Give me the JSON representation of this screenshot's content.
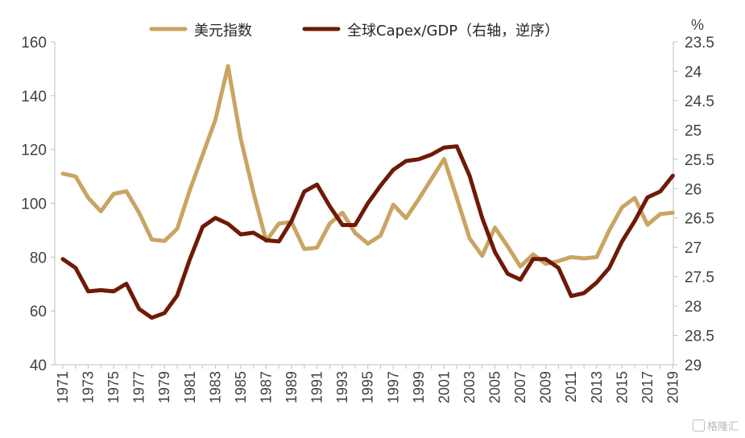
{
  "chart_data": {
    "type": "line",
    "title": "",
    "legend_position": "top",
    "x": [
      1971,
      1972,
      1973,
      1974,
      1975,
      1976,
      1977,
      1978,
      1979,
      1980,
      1981,
      1982,
      1983,
      1984,
      1985,
      1986,
      1987,
      1988,
      1989,
      1990,
      1991,
      1992,
      1993,
      1994,
      1995,
      1996,
      1997,
      1998,
      1999,
      2000,
      2001,
      2002,
      2003,
      2004,
      2005,
      2006,
      2007,
      2008,
      2009,
      2010,
      2011,
      2012,
      2013,
      2014,
      2015,
      2016,
      2017,
      2018,
      2019
    ],
    "x_tick_labels": [
      "1971",
      "1973",
      "1975",
      "1977",
      "1979",
      "1981",
      "1983",
      "1985",
      "1987",
      "1989",
      "1991",
      "1993",
      "1995",
      "1997",
      "1999",
      "2001",
      "2003",
      "2005",
      "2007",
      "2009",
      "2011",
      "2013",
      "2015",
      "2017",
      "2019"
    ],
    "left_axis": {
      "ylim": [
        40,
        160
      ],
      "ticks": [
        "40",
        "60",
        "80",
        "100",
        "120",
        "140",
        "160"
      ]
    },
    "right_axis": {
      "unit_label": "%",
      "ylim": [
        23.5,
        29
      ],
      "inverted": true,
      "ticks": [
        "23.5",
        "24",
        "24.5",
        "25",
        "25.5",
        "26",
        "26.5",
        "27",
        "27.5",
        "28",
        "28.5",
        "29"
      ]
    },
    "series": [
      {
        "name": "美元指数",
        "axis": "left",
        "color": "#c9a463",
        "values": [
          111,
          110,
          102,
          97,
          103.5,
          104.5,
          96.5,
          86.5,
          86,
          90.5,
          105,
          118,
          131,
          151,
          124,
          104,
          86,
          92.5,
          93,
          83,
          83.5,
          92.5,
          96.5,
          89,
          85,
          88,
          99.5,
          94.5,
          101.5,
          109,
          116.5,
          102,
          87,
          80.5,
          91,
          84,
          76.5,
          81,
          77.5,
          78.5,
          80,
          79.5,
          80,
          90,
          98.5,
          102,
          92,
          96,
          96.5
        ]
      },
      {
        "name": "全球Capex/GDP（右轴，逆序）",
        "axis": "right",
        "color": "#6e1a05",
        "values": [
          27.2,
          27.35,
          27.75,
          27.73,
          27.75,
          27.62,
          28.05,
          28.2,
          28.12,
          27.82,
          27.2,
          26.65,
          26.5,
          26.6,
          26.78,
          26.75,
          26.88,
          26.9,
          26.55,
          26.05,
          25.93,
          26.3,
          26.62,
          26.62,
          26.25,
          25.95,
          25.68,
          25.53,
          25.5,
          25.42,
          25.3,
          25.28,
          25.78,
          26.5,
          27.08,
          27.45,
          27.55,
          27.2,
          27.2,
          27.35,
          27.83,
          27.78,
          27.6,
          27.35,
          26.9,
          26.55,
          26.15,
          26.05,
          25.78
        ]
      }
    ]
  },
  "watermark": {
    "icon": "g-logo-icon",
    "text": "格隆汇"
  }
}
